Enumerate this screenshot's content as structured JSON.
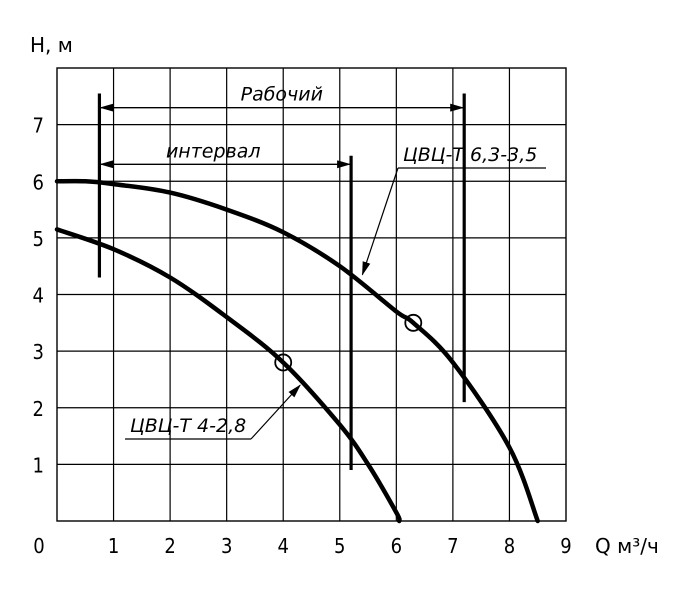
{
  "chart_data": {
    "type": "line",
    "xlabel": "Q м³/ч",
    "ylabel": "H, м",
    "xlim": [
      0,
      9
    ],
    "ylim": [
      0,
      8
    ],
    "grid": true,
    "x_ticks": [
      0,
      1,
      2,
      3,
      4,
      5,
      6,
      7,
      8,
      9
    ],
    "y_ticks": [
      1,
      2,
      3,
      4,
      5,
      6,
      7
    ],
    "series": [
      {
        "name": "ЦВЦ-Т 6,3-3,5",
        "x": [
          0,
          0.5,
          1,
          2,
          3,
          4,
          5,
          6,
          6.3,
          7,
          8,
          8.5
        ],
        "y": [
          6.0,
          6.0,
          5.95,
          5.8,
          5.5,
          5.1,
          4.5,
          3.7,
          3.5,
          2.8,
          1.3,
          0.0
        ],
        "marker": {
          "x": 6.3,
          "y": 3.5
        }
      },
      {
        "name": "ЦВЦ-Т 4-2,8",
        "x": [
          0,
          1,
          2,
          3,
          4,
          5,
          5.5,
          6,
          6.05
        ],
        "y": [
          5.15,
          4.8,
          4.3,
          3.6,
          2.8,
          1.7,
          1.0,
          0.15,
          0.0
        ],
        "marker": {
          "x": 4.0,
          "y": 2.8
        }
      }
    ],
    "vertical_lines": [
      {
        "x": 0.75,
        "y_from": 4.3,
        "y_to": 7.55
      },
      {
        "x": 5.2,
        "y_from": 0.9,
        "y_to": 6.45
      },
      {
        "x": 7.2,
        "y_from": 2.1,
        "y_to": 7.55
      }
    ],
    "annotations": [
      {
        "text": "Рабочий",
        "x_from": 0.75,
        "x_to": 7.2,
        "y": 7.3
      },
      {
        "text": "интервал",
        "x_from": 0.75,
        "x_to": 5.2,
        "y": 6.3
      }
    ],
    "series_labels": [
      {
        "text": "ЦВЦ-Т 6,3-3,5",
        "points_to": {
          "x": 5.4,
          "y": 4.35
        }
      },
      {
        "text": "ЦВЦ-Т 4-2,8",
        "points_to": {
          "x": 4.3,
          "y": 2.4
        }
      }
    ]
  }
}
